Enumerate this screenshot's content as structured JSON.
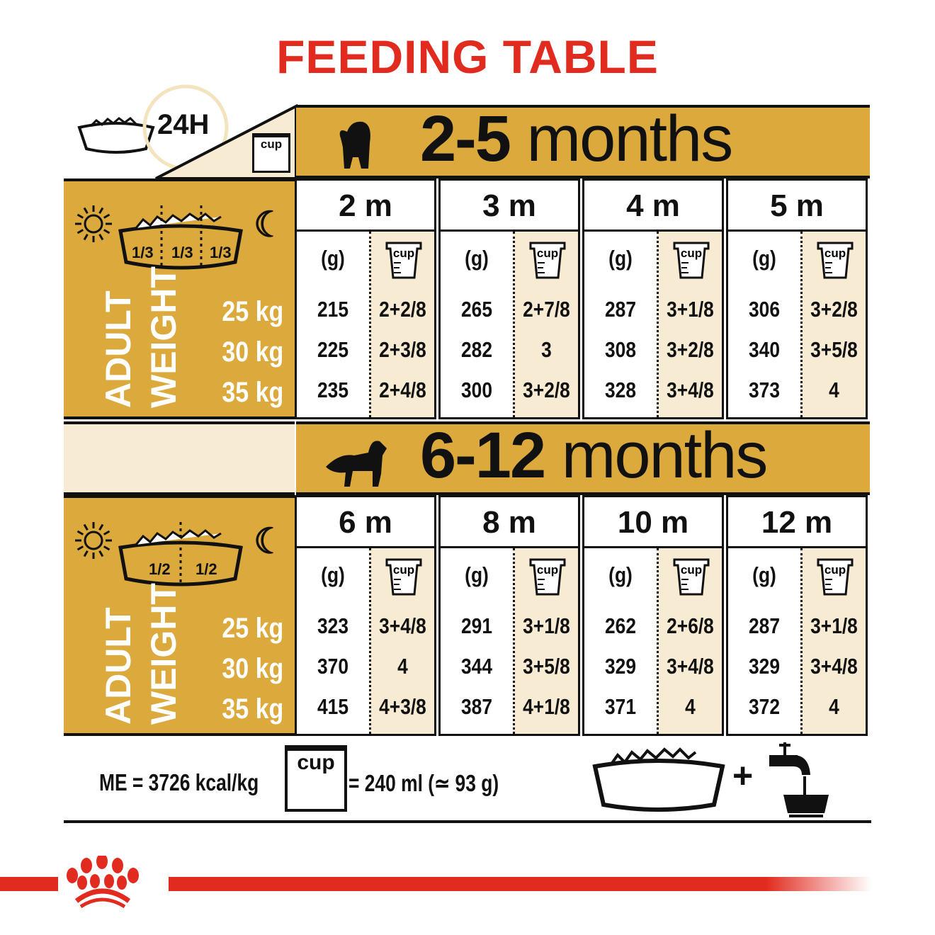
{
  "title": "FEEDING TABLE",
  "corner": {
    "label_24h": "24H",
    "cup_label": "cup"
  },
  "colors": {
    "gold": "#dcaa3c",
    "cream": "#f7ebd3",
    "red": "#e12b1f"
  },
  "sections": [
    {
      "age_range_num": "2-5",
      "age_range_unit": "months",
      "dog_icon": "puppy-silhouette-icon",
      "fractions": [
        "1/3",
        "1/3",
        "1/3"
      ],
      "weights": [
        "25 kg",
        "30 kg",
        "35 kg"
      ],
      "weight_label_1": "ADULT",
      "weight_label_2": "WEIGHT",
      "columns": [
        {
          "month": "2 m",
          "g_header": "(g)",
          "cup_header": "cup",
          "grams": [
            "215",
            "225",
            "235"
          ],
          "cups": [
            "2+2/8",
            "2+3/8",
            "2+4/8"
          ]
        },
        {
          "month": "3 m",
          "g_header": "(g)",
          "cup_header": "cup",
          "grams": [
            "265",
            "282",
            "300"
          ],
          "cups": [
            "2+7/8",
            "3",
            "3+2/8"
          ]
        },
        {
          "month": "4 m",
          "g_header": "(g)",
          "cup_header": "cup",
          "grams": [
            "287",
            "308",
            "328"
          ],
          "cups": [
            "3+1/8",
            "3+2/8",
            "3+4/8"
          ]
        },
        {
          "month": "5 m",
          "g_header": "(g)",
          "cup_header": "cup",
          "grams": [
            "306",
            "340",
            "373"
          ],
          "cups": [
            "3+2/8",
            "3+5/8",
            "4"
          ]
        }
      ]
    },
    {
      "age_range_num": "6-12",
      "age_range_unit": "months",
      "dog_icon": "adult-dog-silhouette-icon",
      "fractions": [
        "1/2",
        "1/2"
      ],
      "weights": [
        "25 kg",
        "30 kg",
        "35 kg"
      ],
      "weight_label_1": "ADULT",
      "weight_label_2": "WEIGHT",
      "columns": [
        {
          "month": "6 m",
          "g_header": "(g)",
          "cup_header": "cup",
          "grams": [
            "323",
            "370",
            "415"
          ],
          "cups": [
            "3+4/8",
            "4",
            "4+3/8"
          ]
        },
        {
          "month": "8 m",
          "g_header": "(g)",
          "cup_header": "cup",
          "grams": [
            "291",
            "344",
            "387"
          ],
          "cups": [
            "3+1/8",
            "3+5/8",
            "4+1/8"
          ]
        },
        {
          "month": "10 m",
          "g_header": "(g)",
          "cup_header": "cup",
          "grams": [
            "262",
            "329",
            "371"
          ],
          "cups": [
            "2+6/8",
            "3+4/8",
            "4"
          ]
        },
        {
          "month": "12 m",
          "g_header": "(g)",
          "cup_header": "cup",
          "grams": [
            "287",
            "329",
            "372"
          ],
          "cups": [
            "3+1/8",
            "3+4/8",
            "4"
          ]
        }
      ]
    }
  ],
  "footer": {
    "energy": "ME = 3726 kcal/kg",
    "cup_label": "cup",
    "cup_equiv": "= 240 ml (≃ 93 g)",
    "plus": "+"
  }
}
